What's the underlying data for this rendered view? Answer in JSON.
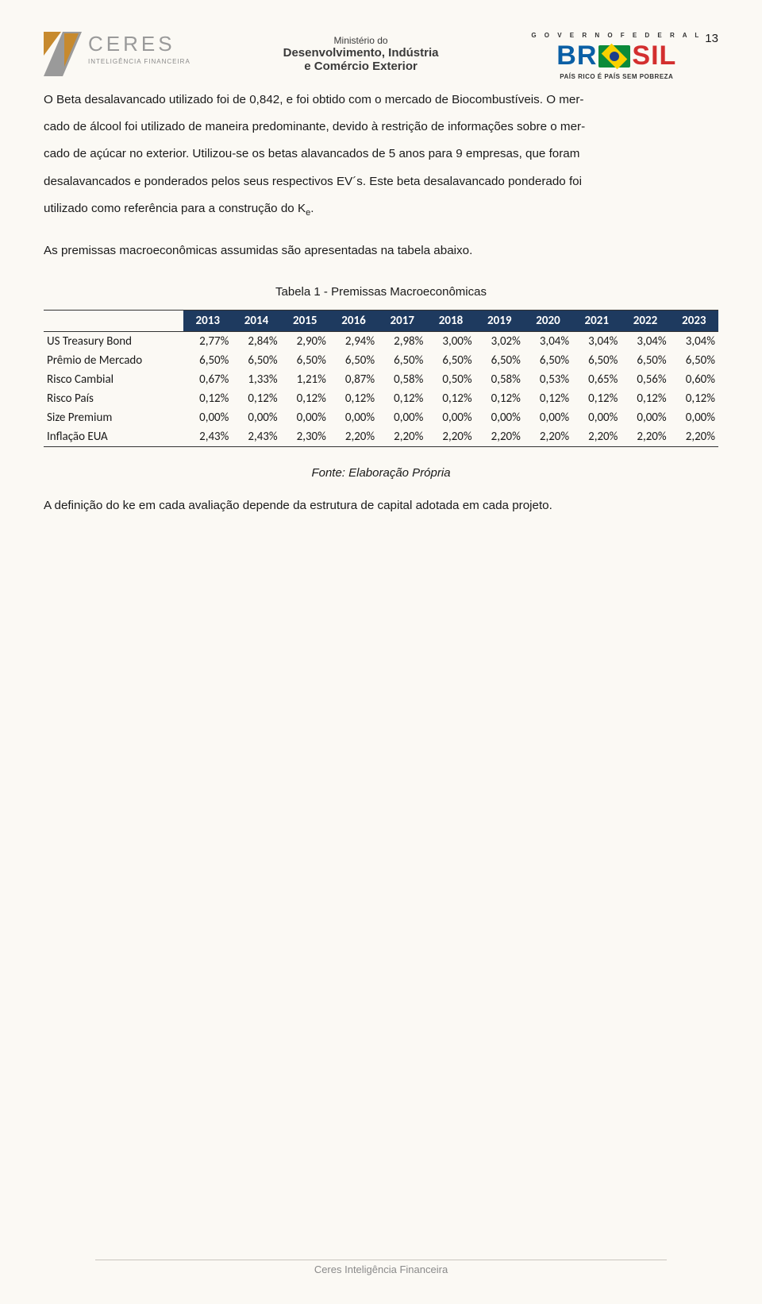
{
  "page_number": "13",
  "header": {
    "ceres": {
      "word": "CERES",
      "sub": "INTELIGÊNCIA FINANCEIRA"
    },
    "ministry": {
      "line1": "Ministério do",
      "line2": "Desenvolvimento, Indústria",
      "line3": "e Comércio Exterior"
    },
    "brasil": {
      "gov": "G O V E R N O   F E D E R A L",
      "word_left": "BR",
      "word_right": "SIL",
      "tag": "PAÍS RICO É PAÍS SEM POBREZA"
    }
  },
  "paragraphs": {
    "p1a": "O Beta desalavancado utilizado foi de 0,842, e foi obtido com o mercado de Biocombustíveis. O mer-",
    "p1b": "cado de álcool foi utilizado de maneira predominante, devido à restrição de informações sobre o mer-",
    "p1c": "cado de açúcar no exterior. Utilizou-se os betas alavancados de 5 anos para 9 empresas, que foram",
    "p1d": "desalavancados e ponderados pelos seus respectivos EV´s. Este beta desalavancado ponderado foi",
    "p1e_pre": "utilizado como referência para a construção do K",
    "p1e_sub": "e",
    "p1e_post": ".",
    "p2": "As premissas macroeconômicas assumidas são apresentadas na tabela abaixo."
  },
  "table": {
    "caption": "Tabela 1 - Premissas Macroeconômicas",
    "header_bg": "#1e3a5f",
    "header_fg": "#ffffff",
    "columns": [
      "",
      "2013",
      "2014",
      "2015",
      "2016",
      "2017",
      "2018",
      "2019",
      "2020",
      "2021",
      "2022",
      "2023"
    ],
    "rows": [
      {
        "label": "US Treasury Bond",
        "values": [
          "2,77%",
          "2,84%",
          "2,90%",
          "2,94%",
          "2,98%",
          "3,00%",
          "3,02%",
          "3,04%",
          "3,04%",
          "3,04%",
          "3,04%"
        ]
      },
      {
        "label": "Prêmio de Mercado",
        "values": [
          "6,50%",
          "6,50%",
          "6,50%",
          "6,50%",
          "6,50%",
          "6,50%",
          "6,50%",
          "6,50%",
          "6,50%",
          "6,50%",
          "6,50%"
        ]
      },
      {
        "label": "Risco Cambial",
        "values": [
          "0,67%",
          "1,33%",
          "1,21%",
          "0,87%",
          "0,58%",
          "0,50%",
          "0,58%",
          "0,53%",
          "0,65%",
          "0,56%",
          "0,60%"
        ]
      },
      {
        "label": "Risco País",
        "values": [
          "0,12%",
          "0,12%",
          "0,12%",
          "0,12%",
          "0,12%",
          "0,12%",
          "0,12%",
          "0,12%",
          "0,12%",
          "0,12%",
          "0,12%"
        ]
      },
      {
        "label": "Size Premium",
        "values": [
          "0,00%",
          "0,00%",
          "0,00%",
          "0,00%",
          "0,00%",
          "0,00%",
          "0,00%",
          "0,00%",
          "0,00%",
          "0,00%",
          "0,00%"
        ]
      },
      {
        "label": "Inflação EUA",
        "values": [
          "2,43%",
          "2,43%",
          "2,30%",
          "2,20%",
          "2,20%",
          "2,20%",
          "2,20%",
          "2,20%",
          "2,20%",
          "2,20%",
          "2,20%"
        ]
      }
    ],
    "fonte": "Fonte: Elaboração Própria"
  },
  "closing": "A definição do ke em cada avaliação depende da estrutura de capital adotada em cada projeto.",
  "footer": "Ceres Inteligência Financeira",
  "colors": {
    "page_bg": "#fbf9f4",
    "text": "#1a1a1a",
    "footer_text": "#8a8a8a",
    "rule": "#c9c6be",
    "ceres_logo_a": "#c78a2e",
    "ceres_logo_b": "#6a6a6a"
  }
}
